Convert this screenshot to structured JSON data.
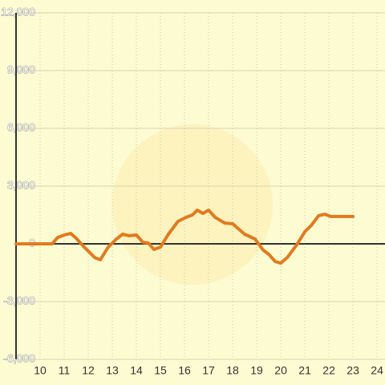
{
  "chart_data": {
    "type": "line",
    "x": [
      9,
      10.5,
      10.73,
      11,
      11.27,
      11.5,
      11.83,
      12.27,
      12.5,
      12.83,
      13.17,
      13.43,
      13.7,
      14,
      14.27,
      14.5,
      14.73,
      15,
      15.33,
      15.73,
      16.07,
      16.33,
      16.53,
      16.77,
      17,
      17.27,
      17.67,
      18,
      18.5,
      18.93,
      19.27,
      19.5,
      19.77,
      20,
      20.27,
      20.67,
      21,
      21.27,
      21.57,
      21.83,
      22.07,
      23
    ],
    "values": [
      0,
      0,
      330,
      460,
      540,
      290,
      -170,
      -710,
      -830,
      -170,
      250,
      500,
      420,
      460,
      80,
      40,
      -290,
      -170,
      500,
      1170,
      1380,
      1500,
      1750,
      1580,
      1750,
      1380,
      1080,
      1040,
      500,
      250,
      -330,
      -540,
      -920,
      -1000,
      -710,
      -40,
      630,
      960,
      1460,
      1540,
      1420,
      1420
    ],
    "color": "#e07b20",
    "xlim": [
      9,
      24.33
    ],
    "xticks": [
      10,
      11,
      12,
      13,
      14,
      15,
      16,
      17,
      18,
      19,
      20,
      21,
      22,
      23,
      24
    ],
    "ylim": [
      -6000,
      12000
    ],
    "yticks": [
      {
        "value": -6000,
        "label": "-6,000"
      },
      {
        "value": -3000,
        "label": "-3,000"
      },
      0,
      {
        "value": 3000,
        "label": "3,000"
      },
      {
        "value": 6000,
        "label": "6,000"
      },
      {
        "value": 9000,
        "label": "9,000"
      },
      {
        "value": 12000,
        "label": "12,000"
      }
    ],
    "grid": true
  }
}
